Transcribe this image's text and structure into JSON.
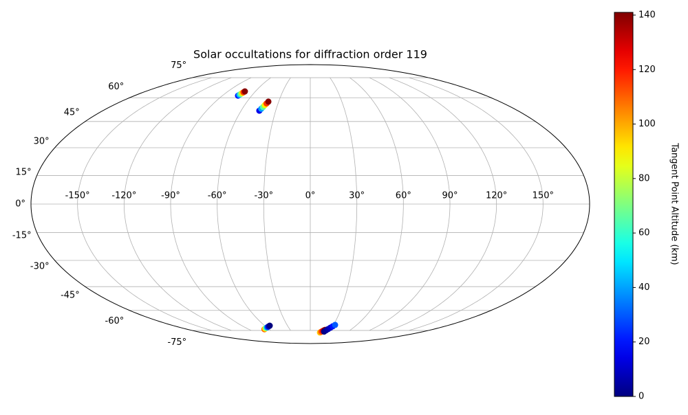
{
  "chart_data": {
    "type": "scatter",
    "projection": "mollweide",
    "title": "Solar occultations for diffraction order 119",
    "colorbar_label": "Tangent Point Altitude (km)",
    "colormap": "jet",
    "clim": [
      0,
      141
    ],
    "cticks": [
      0,
      20,
      40,
      60,
      80,
      100,
      120,
      140
    ],
    "grid": true,
    "xticks": [
      {
        "value": -150,
        "label": "-150°"
      },
      {
        "value": -120,
        "label": "-120°"
      },
      {
        "value": -90,
        "label": "-90°"
      },
      {
        "value": -60,
        "label": "-60°"
      },
      {
        "value": -30,
        "label": "-30°"
      },
      {
        "value": 0,
        "label": "0°"
      },
      {
        "value": 30,
        "label": "30°"
      },
      {
        "value": 60,
        "label": "60°"
      },
      {
        "value": 90,
        "label": "90°"
      },
      {
        "value": 120,
        "label": "120°"
      },
      {
        "value": 150,
        "label": "150°"
      }
    ],
    "yticks": [
      {
        "value": -75,
        "label": "-75°"
      },
      {
        "value": -60,
        "label": "-60°"
      },
      {
        "value": -45,
        "label": "-45°"
      },
      {
        "value": -30,
        "label": "-30°"
      },
      {
        "value": -15,
        "label": "-15°"
      },
      {
        "value": 0,
        "label": "0°"
      },
      {
        "value": 15,
        "label": "15°"
      },
      {
        "value": 30,
        "label": "30°"
      },
      {
        "value": 45,
        "label": "45°"
      },
      {
        "value": 60,
        "label": "60°"
      },
      {
        "value": 75,
        "label": "75°"
      }
    ],
    "x": [
      -74,
      -73.5,
      -73,
      -72.5,
      -72,
      -71.5,
      -44.2,
      -43.3,
      -42.4,
      -41.6,
      -40.7,
      -39.8,
      -67,
      -64.3,
      -61.5,
      -58.8,
      -56.1,
      -53.4,
      16,
      17.2,
      18.4,
      19.6,
      20.8,
      22,
      22,
      24,
      26,
      28,
      30,
      32
    ],
    "y": [
      61.4,
      62,
      62.6,
      63.2,
      63.8,
      64.4,
      51.6,
      52.8,
      53.9,
      55.1,
      56.2,
      57.4,
      -74,
      -73.4,
      -72.8,
      -72.3,
      -71.7,
      -71.1,
      -76.8,
      -76.3,
      -75.9,
      -75.4,
      -75,
      -74.5,
      -76,
      -74.9,
      -73.8,
      -72.7,
      -71.6,
      -70.5
    ],
    "c": [
      20,
      44,
      68,
      92,
      116,
      140,
      15,
      40,
      65,
      90,
      115,
      140,
      110,
      90,
      60,
      30,
      10,
      0,
      95,
      105,
      115,
      125,
      135,
      140,
      0,
      3,
      6,
      10,
      20,
      30
    ]
  }
}
